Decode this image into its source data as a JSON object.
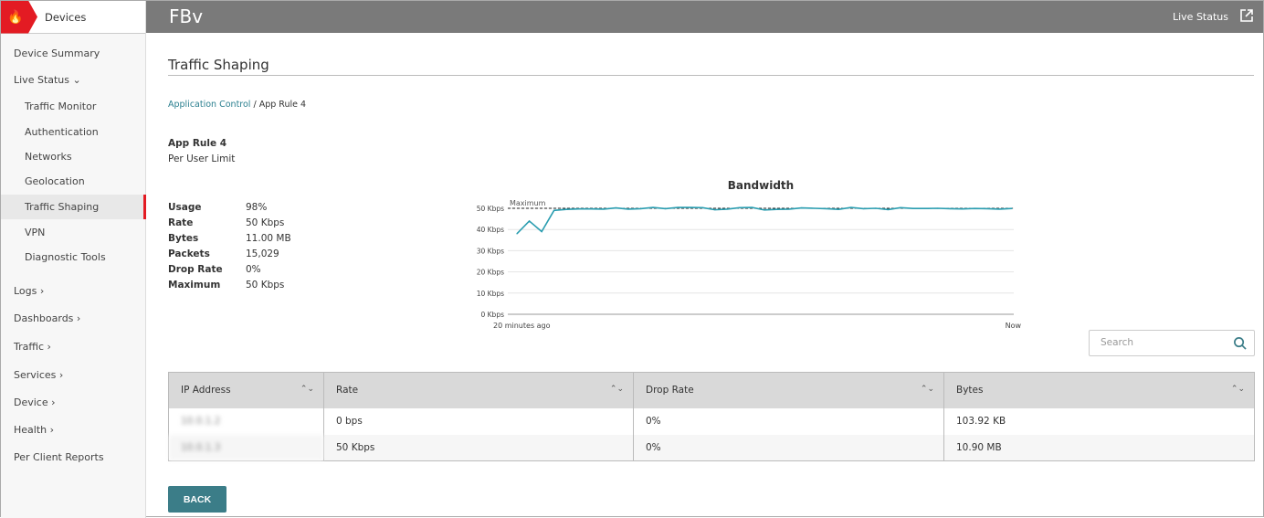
{
  "sidebar": {
    "device_label": "Devices",
    "items": [
      {
        "label": "Device Summary"
      },
      {
        "label": "Live Status ⌄"
      },
      {
        "label": "Traffic Monitor"
      },
      {
        "label": "Authentication"
      },
      {
        "label": "Networks"
      },
      {
        "label": "Geolocation"
      },
      {
        "label": "Traffic Shaping"
      },
      {
        "label": "VPN"
      },
      {
        "label": "Diagnostic Tools"
      },
      {
        "label": "Logs ›"
      },
      {
        "label": "Dashboards ›"
      },
      {
        "label": "Traffic ›"
      },
      {
        "label": "Services ›"
      },
      {
        "label": "Device ›"
      },
      {
        "label": "Health ›"
      },
      {
        "label": "Per Client Reports"
      }
    ],
    "active": "Traffic Shaping",
    "accent": "#e31b23"
  },
  "header": {
    "title": "FBv",
    "live_status": "Live Status"
  },
  "page": {
    "title": "Traffic Shaping",
    "breadcrumb_link": "Application Control",
    "breadcrumb_current": " / App Rule 4",
    "rule_name": "App Rule 4",
    "rule_type": "Per User Limit",
    "stats": [
      {
        "k": "Usage",
        "v": "98%"
      },
      {
        "k": "Rate",
        "v": "50 Kbps"
      },
      {
        "k": "Bytes",
        "v": "11.00 MB"
      },
      {
        "k": "Packets",
        "v": "15,029"
      },
      {
        "k": "Drop Rate",
        "v": "0%"
      },
      {
        "k": "Maximum",
        "v": "50 Kbps"
      }
    ]
  },
  "chart_data": {
    "type": "line",
    "title": "Bandwidth",
    "x_labels": [
      "20 minutes ago",
      "Now"
    ],
    "yticks": [
      "0 Kbps",
      "10 Kbps",
      "20 Kbps",
      "30 Kbps",
      "40 Kbps",
      "50 Kbps"
    ],
    "ylim": [
      0,
      50
    ],
    "max_line": {
      "label": "Maximum",
      "value": 50
    },
    "color": "#2a9db0",
    "values": [
      38,
      44,
      39,
      49,
      49.5,
      49.7,
      49.7,
      49.6,
      50.2,
      49.6,
      49.8,
      50.4,
      49.8,
      50.4,
      50.4,
      50.3,
      49.3,
      49.6,
      50.3,
      50.4,
      49.2,
      49.5,
      49.6,
      50.2,
      50,
      49.8,
      49.5,
      50.4,
      49.8,
      50,
      49.4,
      50.3,
      49.9,
      49.9,
      50,
      49.8,
      49.7,
      49.9,
      49.8,
      49.6,
      49.9
    ]
  },
  "search": {
    "placeholder": "Search"
  },
  "table": {
    "headers": [
      "IP Address",
      "Rate",
      "Drop Rate",
      "Bytes"
    ],
    "rows": [
      [
        "10.0.1.2",
        "0 bps",
        "0%",
        "103.92 KB"
      ],
      [
        "10.0.1.3",
        "50 Kbps",
        "0%",
        "10.90 MB"
      ]
    ]
  },
  "back_label": "BACK"
}
